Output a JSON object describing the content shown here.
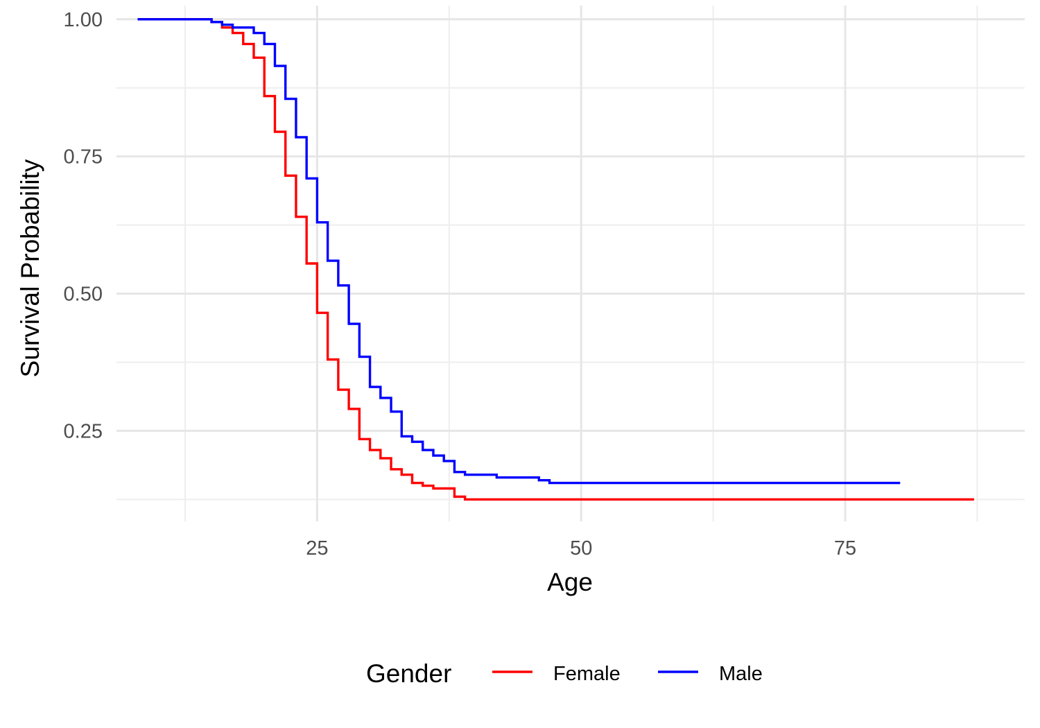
{
  "chart_data": {
    "type": "line",
    "step": true,
    "xlabel": "Age",
    "ylabel": "Survival Probability",
    "xlim": [
      6,
      92
    ],
    "ylim": [
      0.085,
      1.025
    ],
    "x_major_ticks": [
      25,
      50,
      75
    ],
    "x_minor_ticks": [
      12.5,
      37.5,
      62.5,
      87.5
    ],
    "y_major_ticks": [
      0.25,
      0.5,
      0.75,
      1.0
    ],
    "y_tick_labels": [
      "0.25",
      "0.50",
      "0.75",
      "1.00"
    ],
    "y_minor_ticks": [
      0.125,
      0.375,
      0.625,
      0.875
    ],
    "grid": true,
    "legend": {
      "title": "Gender",
      "position": "bottom",
      "entries": [
        "Female",
        "Male"
      ]
    },
    "series": [
      {
        "name": "Female",
        "color": "#ff0000",
        "x": [
          8,
          15,
          16,
          17,
          18,
          19,
          20,
          21,
          22,
          23,
          24,
          25,
          26,
          27,
          28,
          29,
          30,
          31,
          32,
          33,
          34,
          35,
          36,
          38,
          39,
          87.2
        ],
        "y": [
          1.0,
          0.995,
          0.985,
          0.975,
          0.955,
          0.93,
          0.86,
          0.795,
          0.715,
          0.64,
          0.555,
          0.465,
          0.38,
          0.325,
          0.29,
          0.235,
          0.215,
          0.2,
          0.18,
          0.17,
          0.155,
          0.15,
          0.145,
          0.13,
          0.125,
          0.125
        ]
      },
      {
        "name": "Male",
        "color": "#0000ff",
        "x": [
          8,
          15,
          16,
          17,
          18,
          19,
          20,
          21,
          22,
          23,
          24,
          25,
          26,
          27,
          28,
          29,
          30,
          31,
          32,
          33,
          34,
          35,
          36,
          37,
          38,
          39,
          42,
          46,
          47,
          80.2
        ],
        "y": [
          1.0,
          0.995,
          0.99,
          0.985,
          0.985,
          0.975,
          0.955,
          0.915,
          0.855,
          0.785,
          0.71,
          0.63,
          0.56,
          0.515,
          0.445,
          0.385,
          0.33,
          0.31,
          0.285,
          0.24,
          0.23,
          0.215,
          0.205,
          0.195,
          0.175,
          0.17,
          0.165,
          0.16,
          0.155,
          0.155
        ]
      }
    ]
  }
}
